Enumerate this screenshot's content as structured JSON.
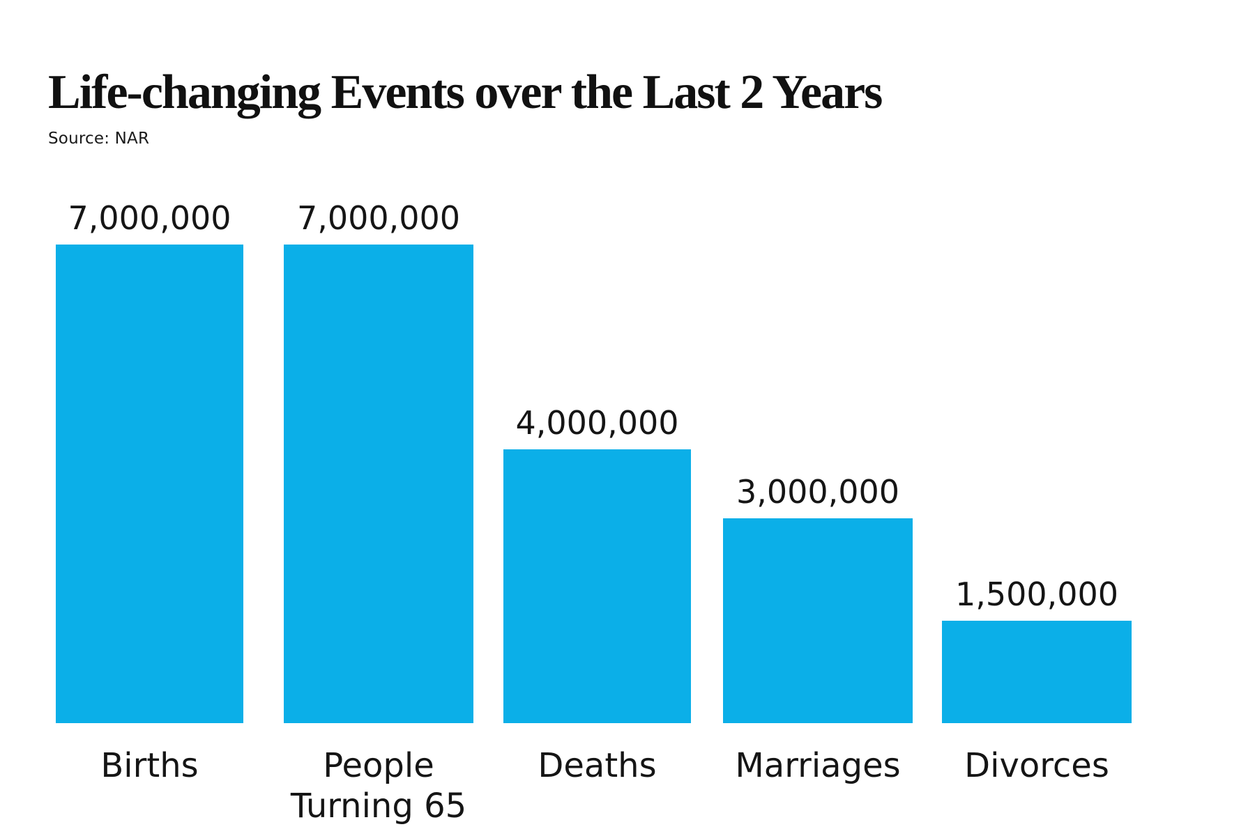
{
  "header": {
    "title": "Life-changing Events over the Last 2 Years",
    "source": "Source: NAR"
  },
  "chart_data": {
    "type": "bar",
    "title": "Life-changing Events over the Last 2 Years",
    "source": "Source: NAR",
    "categories": [
      "Births",
      "People Turning 65",
      "Deaths",
      "Marriages",
      "Divorces"
    ],
    "values": [
      7000000,
      7000000,
      4000000,
      3000000,
      1500000
    ],
    "value_labels": [
      "7,000,000",
      "7,000,000",
      "4,000,000",
      "3,000,000",
      "1,500,000"
    ],
    "xlabel": "",
    "ylabel": "",
    "ylim": [
      0,
      7000000
    ],
    "grid": false,
    "legend": false,
    "axes_visible": false,
    "bar_color": "#0BAFE8",
    "text_color": "#151515",
    "title_color": "#111111",
    "background_color": "#ffffff",
    "value_label_position": "above-bar",
    "category_label_position": "below-bar"
  }
}
